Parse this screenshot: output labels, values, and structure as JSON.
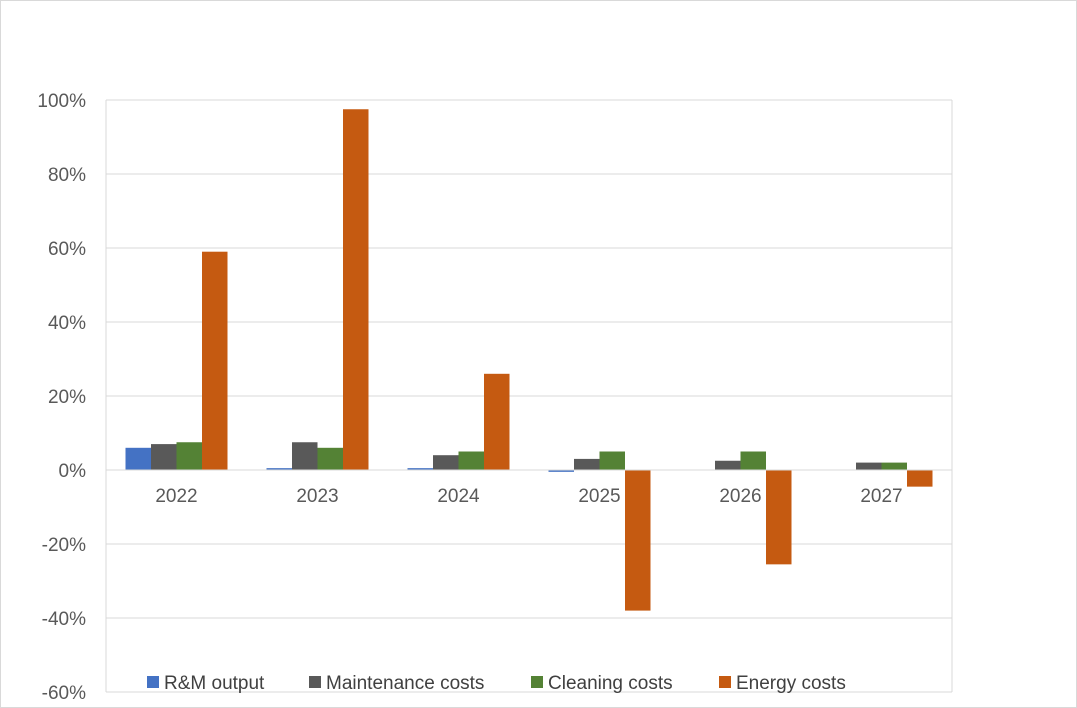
{
  "chart_data": {
    "type": "bar",
    "title": "",
    "xlabel": "",
    "ylabel": "",
    "categories": [
      "2022",
      "2023",
      "2024",
      "2025",
      "2026",
      "2027"
    ],
    "series": [
      {
        "name": "R&M output",
        "color": "#4472c4",
        "values": [
          6,
          0.5,
          0.5,
          -0.5,
          0,
          0
        ]
      },
      {
        "name": "Maintenance costs",
        "color": "#595959",
        "values": [
          7,
          7.5,
          4,
          3,
          2.5,
          2
        ]
      },
      {
        "name": "Cleaning costs",
        "color": "#548235",
        "values": [
          7.5,
          6,
          5,
          5,
          5,
          2
        ]
      },
      {
        "name": "Energy costs",
        "color": "#c55a11",
        "values": [
          59,
          97.5,
          26,
          -38,
          -25.5,
          -4.5
        ]
      }
    ],
    "ylim": [
      -60,
      100
    ],
    "yticks": [
      100,
      80,
      60,
      40,
      20,
      0,
      -20,
      -40,
      -60
    ],
    "ytick_format": "percent",
    "grid": true,
    "legend_position": "bottom"
  }
}
